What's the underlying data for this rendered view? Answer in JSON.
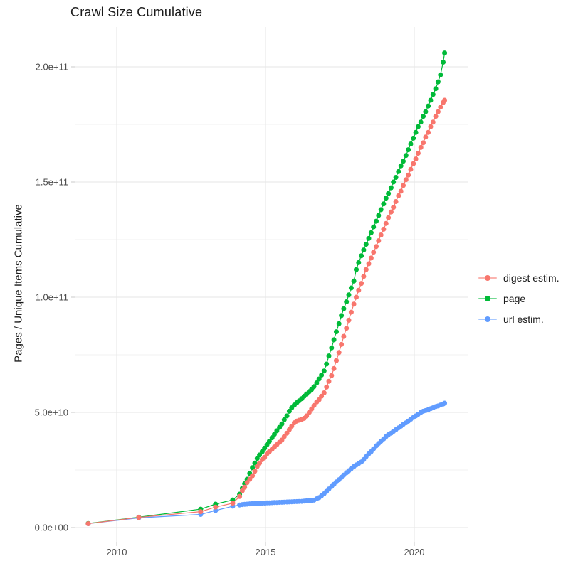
{
  "title": "Crawl Size Cumulative",
  "y_axis_label": "Pages / Unique Items Cumulative",
  "legend": {
    "items": [
      {
        "label": "digest estim.",
        "color": "#F8766D"
      },
      {
        "label": "page",
        "color": "#00BA38"
      },
      {
        "label": "url estim.",
        "color": "#619CFF"
      }
    ]
  },
  "colors": {
    "grid_major": "#E5E5E5",
    "grid_minor": "#F2F2F2",
    "tick_mark": "#C9C9C9",
    "tick_text": "#4D4D4D",
    "background": "#FFFFFF"
  },
  "chart_data": {
    "type": "line",
    "title": "Crawl Size Cumulative",
    "xlabel": "",
    "ylabel": "Pages / Unique Items Cumulative",
    "x_unit": "calendar year (decimal)",
    "y_unit": "pages / unique items, values stored as multiples of 1e10",
    "xlim": [
      2008.6,
      2021.8
    ],
    "ylim_e10": [
      0,
      21.7
    ],
    "grid": true,
    "legend_position": "right",
    "marker": "point",
    "x_major_ticks": [
      {
        "label": "2010",
        "value": 2010
      },
      {
        "label": "2015",
        "value": 2015
      },
      {
        "label": "2020",
        "value": 2020
      }
    ],
    "x_minor_ticks": [
      2012.5,
      2017.5
    ],
    "y_major_ticks": [
      {
        "label": "0.0e+00",
        "value_e10": 0
      },
      {
        "label": "5.0e+10",
        "value_e10": 5
      },
      {
        "label": "1.0e+11",
        "value_e10": 10
      },
      {
        "label": "1.5e+11",
        "value_e10": 15
      },
      {
        "label": "2.0e+11",
        "value_e10": 20
      }
    ],
    "y_minor_ticks_e10": [
      2.5,
      7.5,
      12.5,
      17.5
    ],
    "series": [
      {
        "name": "digest estim.",
        "color": "#F8766D",
        "points": [
          [
            2009.04,
            0.17
          ],
          [
            2010.74,
            0.44
          ],
          [
            2012.82,
            0.69
          ],
          [
            2013.32,
            0.89
          ],
          [
            2013.9,
            1.06
          ],
          [
            2014.13,
            1.35
          ],
          [
            2014.22,
            1.6
          ],
          [
            2014.3,
            1.75
          ],
          [
            2014.38,
            1.95
          ],
          [
            2014.47,
            2.1
          ],
          [
            2014.56,
            2.25
          ],
          [
            2014.64,
            2.45
          ],
          [
            2014.72,
            2.65
          ],
          [
            2014.8,
            2.8
          ],
          [
            2014.89,
            2.95
          ],
          [
            2014.97,
            3.05
          ],
          [
            2015.05,
            3.2
          ],
          [
            2015.13,
            3.3
          ],
          [
            2015.22,
            3.4
          ],
          [
            2015.3,
            3.5
          ],
          [
            2015.38,
            3.6
          ],
          [
            2015.47,
            3.7
          ],
          [
            2015.55,
            3.8
          ],
          [
            2015.63,
            3.95
          ],
          [
            2015.72,
            4.1
          ],
          [
            2015.8,
            4.25
          ],
          [
            2015.88,
            4.4
          ],
          [
            2015.97,
            4.55
          ],
          [
            2016.05,
            4.62
          ],
          [
            2016.13,
            4.66
          ],
          [
            2016.22,
            4.7
          ],
          [
            2016.3,
            4.74
          ],
          [
            2016.38,
            4.85
          ],
          [
            2016.47,
            5.0
          ],
          [
            2016.55,
            5.15
          ],
          [
            2016.63,
            5.3
          ],
          [
            2016.72,
            5.45
          ],
          [
            2016.8,
            5.55
          ],
          [
            2016.88,
            5.7
          ],
          [
            2016.97,
            5.85
          ],
          [
            2017.05,
            6.1
          ],
          [
            2017.13,
            6.35
          ],
          [
            2017.22,
            6.6
          ],
          [
            2017.3,
            6.9
          ],
          [
            2017.38,
            7.25
          ],
          [
            2017.47,
            7.6
          ],
          [
            2017.55,
            7.95
          ],
          [
            2017.63,
            8.3
          ],
          [
            2017.72,
            8.65
          ],
          [
            2017.8,
            9.0
          ],
          [
            2017.88,
            9.35
          ],
          [
            2017.97,
            9.7
          ],
          [
            2018.05,
            10.0
          ],
          [
            2018.13,
            10.3
          ],
          [
            2018.22,
            10.6
          ],
          [
            2018.3,
            10.9
          ],
          [
            2018.38,
            11.2
          ],
          [
            2018.47,
            11.45
          ],
          [
            2018.55,
            11.7
          ],
          [
            2018.63,
            11.95
          ],
          [
            2018.72,
            12.2
          ],
          [
            2018.8,
            12.45
          ],
          [
            2018.88,
            12.7
          ],
          [
            2018.97,
            12.95
          ],
          [
            2019.05,
            13.2
          ],
          [
            2019.13,
            13.45
          ],
          [
            2019.22,
            13.7
          ],
          [
            2019.3,
            13.9
          ],
          [
            2019.38,
            14.15
          ],
          [
            2019.47,
            14.4
          ],
          [
            2019.55,
            14.6
          ],
          [
            2019.63,
            14.85
          ],
          [
            2019.72,
            15.1
          ],
          [
            2019.8,
            15.3
          ],
          [
            2019.88,
            15.55
          ],
          [
            2019.97,
            15.8
          ],
          [
            2020.05,
            16.0
          ],
          [
            2020.13,
            16.25
          ],
          [
            2020.22,
            16.5
          ],
          [
            2020.3,
            16.7
          ],
          [
            2020.38,
            16.95
          ],
          [
            2020.47,
            17.15
          ],
          [
            2020.55,
            17.4
          ],
          [
            2020.63,
            17.6
          ],
          [
            2020.72,
            17.85
          ],
          [
            2020.8,
            18.05
          ],
          [
            2020.88,
            18.25
          ],
          [
            2020.97,
            18.45
          ],
          [
            2021.02,
            18.55
          ]
        ]
      },
      {
        "name": "page",
        "color": "#00BA38",
        "points": [
          [
            2009.04,
            0.18
          ],
          [
            2010.74,
            0.45
          ],
          [
            2012.82,
            0.8
          ],
          [
            2013.32,
            1.02
          ],
          [
            2013.9,
            1.2
          ],
          [
            2014.13,
            1.45
          ],
          [
            2014.22,
            1.7
          ],
          [
            2014.3,
            1.9
          ],
          [
            2014.38,
            2.1
          ],
          [
            2014.47,
            2.35
          ],
          [
            2014.56,
            2.6
          ],
          [
            2014.64,
            2.8
          ],
          [
            2014.72,
            3.0
          ],
          [
            2014.8,
            3.15
          ],
          [
            2014.89,
            3.3
          ],
          [
            2014.97,
            3.45
          ],
          [
            2015.05,
            3.6
          ],
          [
            2015.13,
            3.75
          ],
          [
            2015.22,
            3.9
          ],
          [
            2015.3,
            4.05
          ],
          [
            2015.38,
            4.2
          ],
          [
            2015.47,
            4.35
          ],
          [
            2015.55,
            4.5
          ],
          [
            2015.63,
            4.68
          ],
          [
            2015.72,
            4.85
          ],
          [
            2015.8,
            5.05
          ],
          [
            2015.88,
            5.2
          ],
          [
            2015.97,
            5.32
          ],
          [
            2016.05,
            5.42
          ],
          [
            2016.13,
            5.5
          ],
          [
            2016.22,
            5.6
          ],
          [
            2016.3,
            5.7
          ],
          [
            2016.38,
            5.8
          ],
          [
            2016.47,
            5.9
          ],
          [
            2016.55,
            6.0
          ],
          [
            2016.63,
            6.12
          ],
          [
            2016.72,
            6.28
          ],
          [
            2016.8,
            6.45
          ],
          [
            2016.88,
            6.62
          ],
          [
            2016.97,
            6.8
          ],
          [
            2017.05,
            7.1
          ],
          [
            2017.13,
            7.45
          ],
          [
            2017.22,
            7.8
          ],
          [
            2017.3,
            8.15
          ],
          [
            2017.38,
            8.5
          ],
          [
            2017.47,
            8.85
          ],
          [
            2017.55,
            9.2
          ],
          [
            2017.63,
            9.5
          ],
          [
            2017.72,
            9.8
          ],
          [
            2017.8,
            10.1
          ],
          [
            2017.88,
            10.4
          ],
          [
            2017.97,
            10.7
          ],
          [
            2018.05,
            11.2
          ],
          [
            2018.13,
            11.5
          ],
          [
            2018.22,
            11.8
          ],
          [
            2018.3,
            12.05
          ],
          [
            2018.38,
            12.3
          ],
          [
            2018.47,
            12.55
          ],
          [
            2018.55,
            12.8
          ],
          [
            2018.63,
            13.05
          ],
          [
            2018.72,
            13.3
          ],
          [
            2018.8,
            13.55
          ],
          [
            2018.88,
            13.8
          ],
          [
            2018.97,
            14.05
          ],
          [
            2019.05,
            14.3
          ],
          [
            2019.13,
            14.5
          ],
          [
            2019.22,
            14.75
          ],
          [
            2019.3,
            15.0
          ],
          [
            2019.38,
            15.2
          ],
          [
            2019.47,
            15.45
          ],
          [
            2019.55,
            15.7
          ],
          [
            2019.63,
            15.9
          ],
          [
            2019.72,
            16.15
          ],
          [
            2019.8,
            16.4
          ],
          [
            2019.88,
            16.65
          ],
          [
            2019.97,
            16.9
          ],
          [
            2020.05,
            17.15
          ],
          [
            2020.13,
            17.4
          ],
          [
            2020.22,
            17.6
          ],
          [
            2020.3,
            17.85
          ],
          [
            2020.38,
            18.05
          ],
          [
            2020.47,
            18.3
          ],
          [
            2020.55,
            18.55
          ],
          [
            2020.63,
            18.8
          ],
          [
            2020.72,
            19.05
          ],
          [
            2020.8,
            19.35
          ],
          [
            2020.88,
            19.65
          ],
          [
            2020.97,
            20.2
          ],
          [
            2021.02,
            20.6
          ]
        ]
      },
      {
        "name": "url estim.",
        "color": "#619CFF",
        "points": [
          [
            2009.04,
            0.17
          ],
          [
            2010.74,
            0.42
          ],
          [
            2012.82,
            0.57
          ],
          [
            2013.32,
            0.74
          ],
          [
            2013.9,
            0.93
          ],
          [
            2014.13,
            0.98
          ],
          [
            2014.22,
            1.0
          ],
          [
            2014.3,
            1.01
          ],
          [
            2014.38,
            1.02
          ],
          [
            2014.47,
            1.03
          ],
          [
            2014.56,
            1.04
          ],
          [
            2014.64,
            1.045
          ],
          [
            2014.72,
            1.05
          ],
          [
            2014.8,
            1.055
          ],
          [
            2014.89,
            1.06
          ],
          [
            2014.97,
            1.065
          ],
          [
            2015.05,
            1.07
          ],
          [
            2015.13,
            1.075
          ],
          [
            2015.22,
            1.08
          ],
          [
            2015.3,
            1.085
          ],
          [
            2015.38,
            1.09
          ],
          [
            2015.47,
            1.095
          ],
          [
            2015.55,
            1.1
          ],
          [
            2015.63,
            1.105
          ],
          [
            2015.72,
            1.11
          ],
          [
            2015.8,
            1.115
          ],
          [
            2015.88,
            1.12
          ],
          [
            2015.97,
            1.125
          ],
          [
            2016.05,
            1.13
          ],
          [
            2016.13,
            1.135
          ],
          [
            2016.22,
            1.14
          ],
          [
            2016.3,
            1.15
          ],
          [
            2016.38,
            1.16
          ],
          [
            2016.47,
            1.17
          ],
          [
            2016.55,
            1.18
          ],
          [
            2016.63,
            1.19
          ],
          [
            2016.72,
            1.25
          ],
          [
            2016.8,
            1.3
          ],
          [
            2016.88,
            1.38
          ],
          [
            2016.97,
            1.47
          ],
          [
            2017.05,
            1.57
          ],
          [
            2017.13,
            1.68
          ],
          [
            2017.22,
            1.78
          ],
          [
            2017.3,
            1.88
          ],
          [
            2017.38,
            1.98
          ],
          [
            2017.47,
            2.08
          ],
          [
            2017.55,
            2.18
          ],
          [
            2017.63,
            2.28
          ],
          [
            2017.72,
            2.38
          ],
          [
            2017.8,
            2.47
          ],
          [
            2017.88,
            2.56
          ],
          [
            2017.97,
            2.65
          ],
          [
            2018.05,
            2.72
          ],
          [
            2018.13,
            2.78
          ],
          [
            2018.22,
            2.85
          ],
          [
            2018.3,
            2.95
          ],
          [
            2018.38,
            3.08
          ],
          [
            2018.47,
            3.2
          ],
          [
            2018.55,
            3.3
          ],
          [
            2018.63,
            3.42
          ],
          [
            2018.72,
            3.55
          ],
          [
            2018.8,
            3.65
          ],
          [
            2018.88,
            3.75
          ],
          [
            2018.97,
            3.85
          ],
          [
            2019.05,
            3.95
          ],
          [
            2019.13,
            4.03
          ],
          [
            2019.22,
            4.1
          ],
          [
            2019.3,
            4.18
          ],
          [
            2019.38,
            4.25
          ],
          [
            2019.47,
            4.33
          ],
          [
            2019.55,
            4.4
          ],
          [
            2019.63,
            4.48
          ],
          [
            2019.72,
            4.55
          ],
          [
            2019.8,
            4.62
          ],
          [
            2019.88,
            4.7
          ],
          [
            2019.97,
            4.78
          ],
          [
            2020.05,
            4.85
          ],
          [
            2020.13,
            4.92
          ],
          [
            2020.22,
            5.0
          ],
          [
            2020.3,
            5.05
          ],
          [
            2020.38,
            5.08
          ],
          [
            2020.47,
            5.12
          ],
          [
            2020.55,
            5.16
          ],
          [
            2020.63,
            5.2
          ],
          [
            2020.72,
            5.25
          ],
          [
            2020.8,
            5.28
          ],
          [
            2020.88,
            5.32
          ],
          [
            2020.97,
            5.36
          ],
          [
            2021.02,
            5.4
          ]
        ]
      }
    ]
  }
}
